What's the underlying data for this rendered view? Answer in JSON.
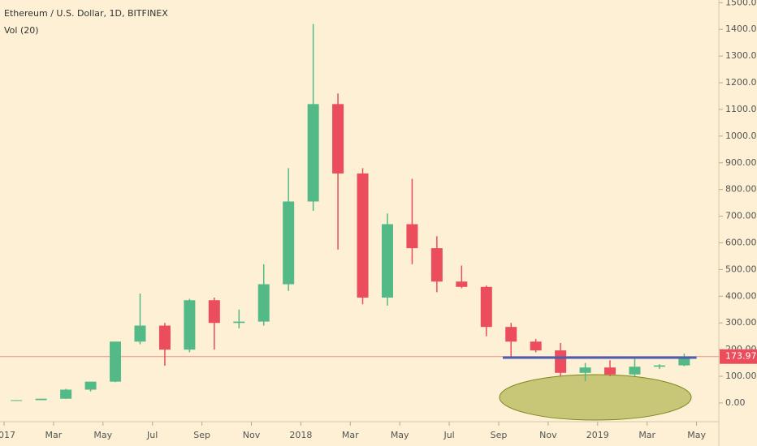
{
  "chart_data": {
    "type": "candlestick",
    "title": "Ethereum / U.S. Dollar, 1D, BITFINEX",
    "subtitle": "Vol (20)",
    "x": [
      "2017-01",
      "2017-02",
      "2017-03",
      "2017-04",
      "2017-05",
      "2017-06",
      "2017-07",
      "2017-08",
      "2017-09",
      "2017-10",
      "2017-11",
      "2017-12",
      "2018-01",
      "2018-02",
      "2018-03",
      "2018-04",
      "2018-05",
      "2018-06",
      "2018-07",
      "2018-08",
      "2018-09",
      "2018-10",
      "2018-11",
      "2018-12",
      "2019-01",
      "2019-02",
      "2019-03",
      "2019-04"
    ],
    "open": [
      8,
      10.7,
      16,
      50,
      80,
      230,
      290,
      200,
      385,
      300,
      305,
      445,
      755,
      1120,
      860,
      395,
      670,
      580,
      455,
      435,
      285,
      230,
      197,
      113,
      133,
      107,
      136,
      141
    ],
    "high": [
      11,
      16,
      53,
      80,
      230,
      410,
      300,
      390,
      395,
      350,
      520,
      880,
      1420,
      1160,
      880,
      710,
      840,
      625,
      515,
      440,
      300,
      240,
      225,
      150,
      160,
      165,
      145,
      185
    ],
    "low": [
      8,
      10.5,
      15.5,
      43,
      78,
      220,
      140,
      190,
      200,
      280,
      290,
      420,
      720,
      575,
      370,
      365,
      520,
      415,
      430,
      250,
      170,
      190,
      101,
      82,
      100,
      100,
      127,
      138
    ],
    "close": [
      10.7,
      16,
      50,
      80,
      230,
      290,
      200,
      385,
      300,
      305,
      445,
      755,
      1120,
      860,
      395,
      670,
      580,
      455,
      435,
      285,
      230,
      197,
      113,
      133,
      107,
      136,
      141,
      173.97
    ],
    "up_color": "#53b987",
    "down_color": "#eb4d5c",
    "ylim": [
      -70,
      1510
    ],
    "yticks": [
      {
        "value": 0,
        "label": "0.00"
      },
      {
        "value": 100,
        "label": "100.00"
      },
      {
        "value": 200,
        "label": "200.00"
      },
      {
        "value": 300,
        "label": "300.00"
      },
      {
        "value": 400,
        "label": "400.00"
      },
      {
        "value": 500,
        "label": "500.00"
      },
      {
        "value": 600,
        "label": "600.00"
      },
      {
        "value": 700,
        "label": "700.00"
      },
      {
        "value": 800,
        "label": "800.00"
      },
      {
        "value": 900,
        "label": "900.00"
      },
      {
        "value": 1000,
        "label": "1000.00"
      },
      {
        "value": 1100,
        "label": "1100.00"
      },
      {
        "value": 1200,
        "label": "1200.00"
      },
      {
        "value": 1300,
        "label": "1300.00"
      },
      {
        "value": 1400,
        "label": "1400.00"
      },
      {
        "value": 1500,
        "label": "1500.00"
      }
    ],
    "xticks": [
      {
        "value": "2017-01",
        "label": "2017"
      },
      {
        "value": "2017-03",
        "label": "Mar"
      },
      {
        "value": "2017-05",
        "label": "May"
      },
      {
        "value": "2017-07",
        "label": "Jul"
      },
      {
        "value": "2017-09",
        "label": "Sep"
      },
      {
        "value": "2017-11",
        "label": "Nov"
      },
      {
        "value": "2018-01",
        "label": "2018"
      },
      {
        "value": "2018-03",
        "label": "Mar"
      },
      {
        "value": "2018-05",
        "label": "May"
      },
      {
        "value": "2018-07",
        "label": "Jul"
      },
      {
        "value": "2018-09",
        "label": "Sep"
      },
      {
        "value": "2018-11",
        "label": "Nov"
      },
      {
        "value": "2019-01",
        "label": "2019"
      },
      {
        "value": "2019-03",
        "label": "Mar"
      },
      {
        "value": "2019-05",
        "label": "May"
      }
    ],
    "last_price": {
      "value": 173.97,
      "label": "173.97",
      "color": "#eb4d5c"
    },
    "level_line": {
      "value": 170,
      "from": "2018-09",
      "to": "2019-04",
      "color": "#4a5fb0"
    }
  }
}
